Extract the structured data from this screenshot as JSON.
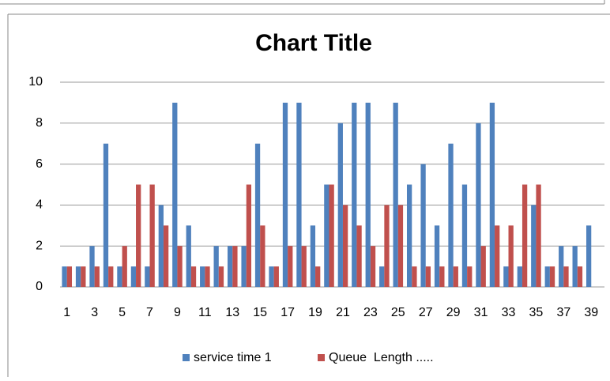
{
  "chart_data": {
    "type": "bar",
    "title": "Chart Title",
    "categories": [
      1,
      null,
      3,
      null,
      5,
      null,
      7,
      null,
      9,
      null,
      11,
      null,
      13,
      null,
      15,
      null,
      17,
      null,
      19,
      null,
      21,
      null,
      23,
      null,
      25,
      null,
      27,
      null,
      29,
      null,
      31,
      null,
      33,
      null,
      35,
      null,
      37,
      null,
      39
    ],
    "series": [
      {
        "name": "service time 1",
        "color": "#4f81bd",
        "values": [
          1,
          1,
          2,
          7,
          1,
          1,
          1,
          4,
          9,
          3,
          1,
          2,
          2,
          2,
          7,
          1,
          9,
          9,
          3,
          5,
          8,
          9,
          9,
          1,
          9,
          5,
          6,
          3,
          7,
          5,
          8,
          9,
          1,
          1,
          4,
          1,
          2,
          2,
          3
        ]
      },
      {
        "name": "Queue  Length .....",
        "color": "#c0504d",
        "values": [
          1,
          1,
          1,
          1,
          2,
          5,
          5,
          3,
          2,
          1,
          1,
          1,
          2,
          5,
          3,
          1,
          2,
          2,
          1,
          5,
          4,
          3,
          2,
          4,
          4,
          1,
          1,
          1,
          1,
          1,
          2,
          3,
          3,
          5,
          5,
          1,
          1,
          1,
          null
        ]
      }
    ],
    "ylim": [
      0,
      10
    ],
    "yticks": [
      0,
      2,
      4,
      6,
      8,
      10
    ],
    "grid": true,
    "legend": "bottom"
  }
}
